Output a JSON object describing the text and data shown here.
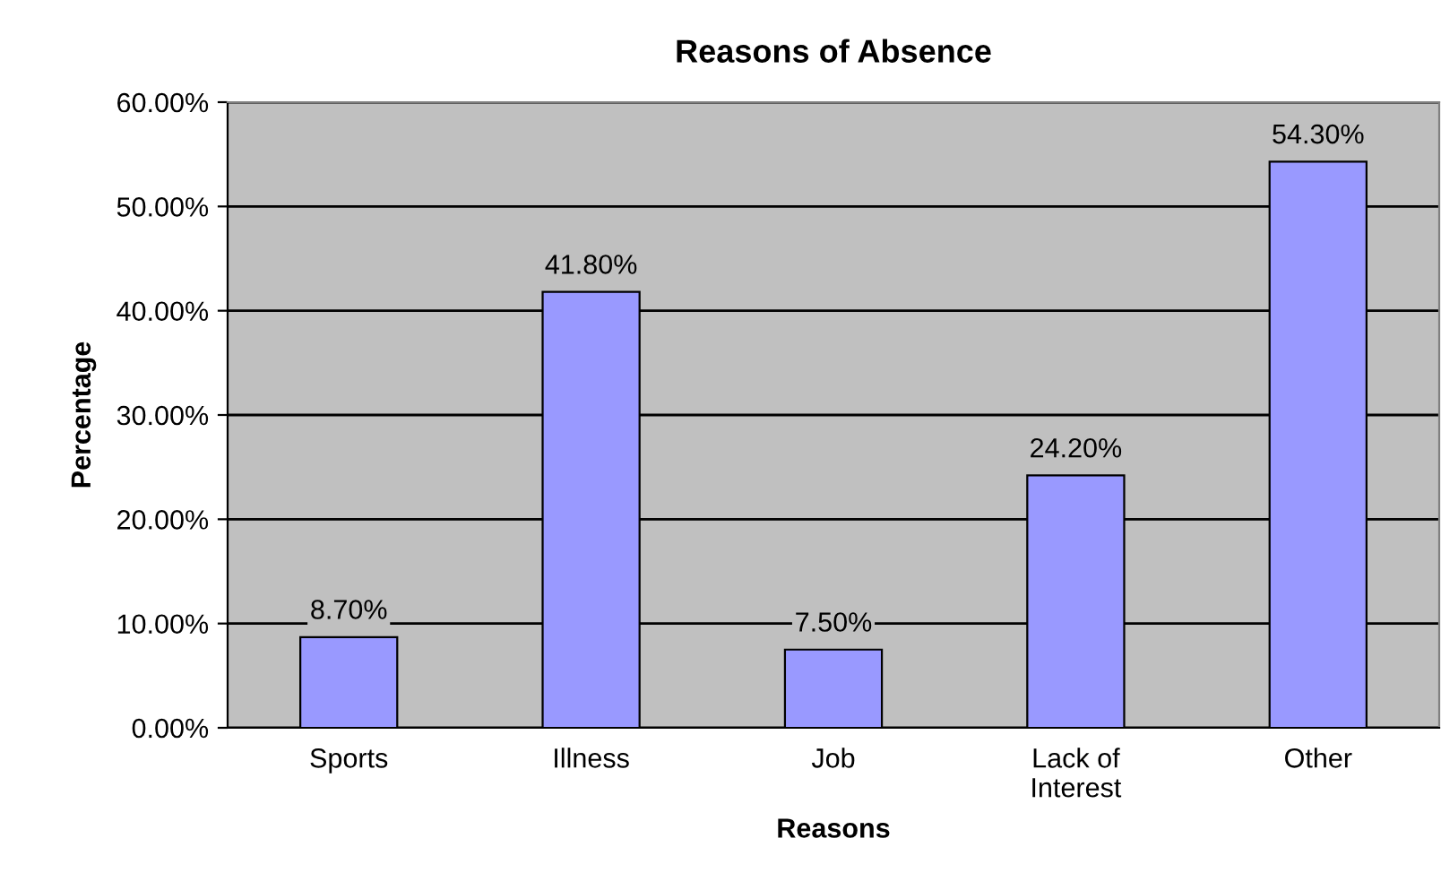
{
  "chart_data": {
    "type": "bar",
    "title": "Reasons of Absence",
    "xlabel": "Reasons",
    "ylabel": "Percentage",
    "categories": [
      "Sports",
      "Illness",
      "Job",
      "Lack of\nInterest",
      "Other"
    ],
    "values": [
      8.7,
      41.8,
      7.5,
      24.2,
      54.3
    ],
    "value_labels": [
      "8.70%",
      "41.80%",
      "7.50%",
      "24.20%",
      "54.30%"
    ],
    "color": "#9999ff",
    "ylim": [
      0,
      60
    ],
    "yticks": [
      {
        "value": 0,
        "label": "0.00%"
      },
      {
        "value": 10,
        "label": "10.00%"
      },
      {
        "value": 20,
        "label": "20.00%"
      },
      {
        "value": 30,
        "label": "30.00%"
      },
      {
        "value": 40,
        "label": "40.00%"
      },
      {
        "value": 50,
        "label": "50.00%"
      },
      {
        "value": 60,
        "label": "60.00%"
      }
    ],
    "grid": "y",
    "legend": false
  }
}
